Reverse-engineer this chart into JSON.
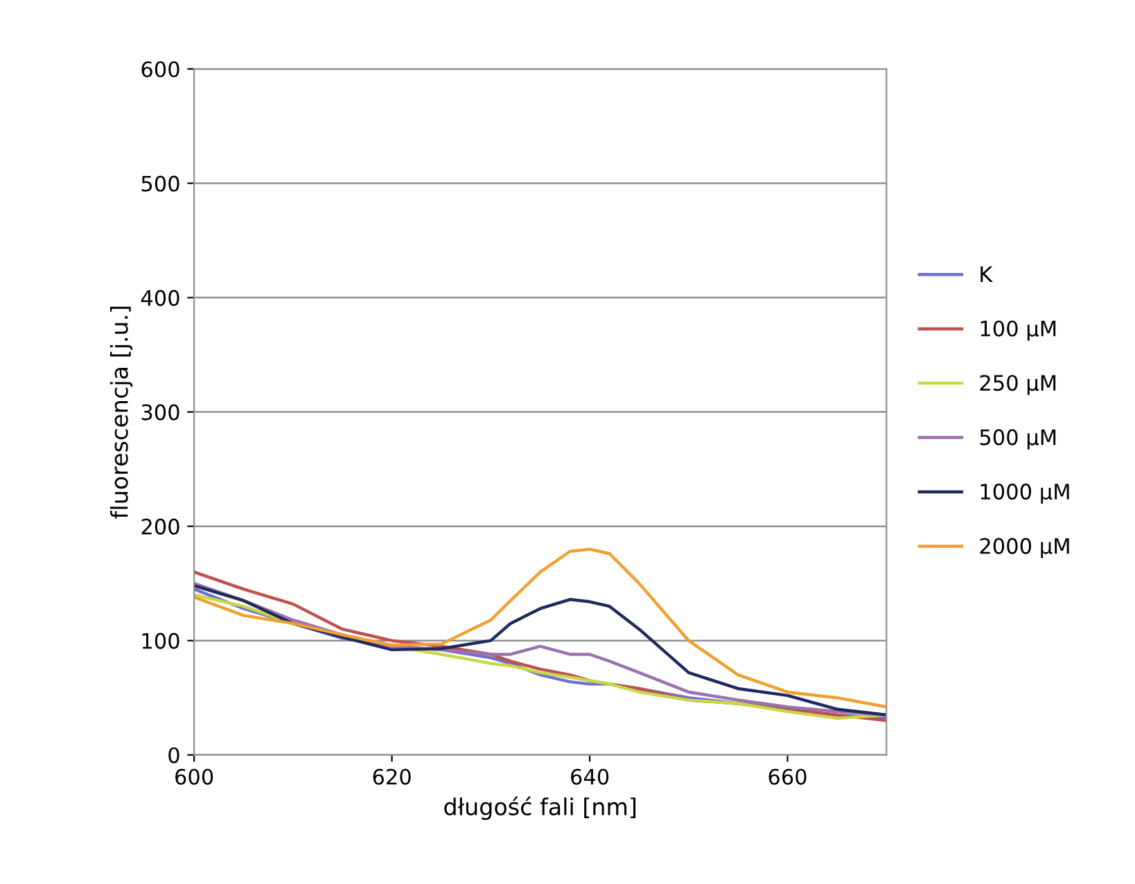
{
  "chart_data": {
    "type": "line",
    "xlabel": "długość fali [nm]",
    "ylabel": "fluorescencja [j.u.]",
    "x": [
      600,
      605,
      610,
      615,
      620,
      625,
      630,
      632,
      635,
      638,
      640,
      642,
      645,
      650,
      655,
      660,
      665,
      670
    ],
    "series": [
      {
        "name": "K",
        "color": "#6f6fd0",
        "values": [
          145,
          128,
          115,
          102,
          95,
          92,
          85,
          80,
          70,
          64,
          62,
          62,
          58,
          50,
          45,
          40,
          35,
          32
        ]
      },
      {
        "name": "100 µM",
        "color": "#c0504d",
        "values": [
          160,
          145,
          132,
          110,
          100,
          95,
          88,
          82,
          75,
          70,
          65,
          62,
          58,
          48,
          45,
          40,
          35,
          30
        ]
      },
      {
        "name": "250 µM",
        "color": "#c8d848",
        "values": [
          140,
          130,
          115,
          105,
          95,
          88,
          80,
          78,
          72,
          68,
          65,
          62,
          55,
          48,
          45,
          38,
          32,
          35
        ]
      },
      {
        "name": "500 µM",
        "color": "#9b72b0",
        "values": [
          150,
          135,
          118,
          105,
          95,
          92,
          88,
          88,
          95,
          88,
          88,
          82,
          72,
          55,
          48,
          42,
          38,
          35
        ]
      },
      {
        "name": "1000 µM",
        "color": "#1f2a5e",
        "values": [
          148,
          135,
          115,
          103,
          92,
          93,
          100,
          115,
          128,
          136,
          134,
          130,
          110,
          72,
          58,
          52,
          40,
          35
        ]
      },
      {
        "name": "2000 µM",
        "color": "#f0a030",
        "values": [
          138,
          122,
          115,
          105,
          96,
          97,
          118,
          135,
          160,
          178,
          180,
          176,
          150,
          100,
          70,
          55,
          50,
          42
        ]
      }
    ],
    "xlim": [
      600,
      670
    ],
    "xticks": [
      600,
      620,
      640,
      660
    ],
    "ylim": [
      0,
      600
    ],
    "yticks": [
      0,
      100,
      200,
      300,
      400,
      500,
      600
    ],
    "grid": "y",
    "legend": "right",
    "marker": "none",
    "line_style": "solid"
  }
}
